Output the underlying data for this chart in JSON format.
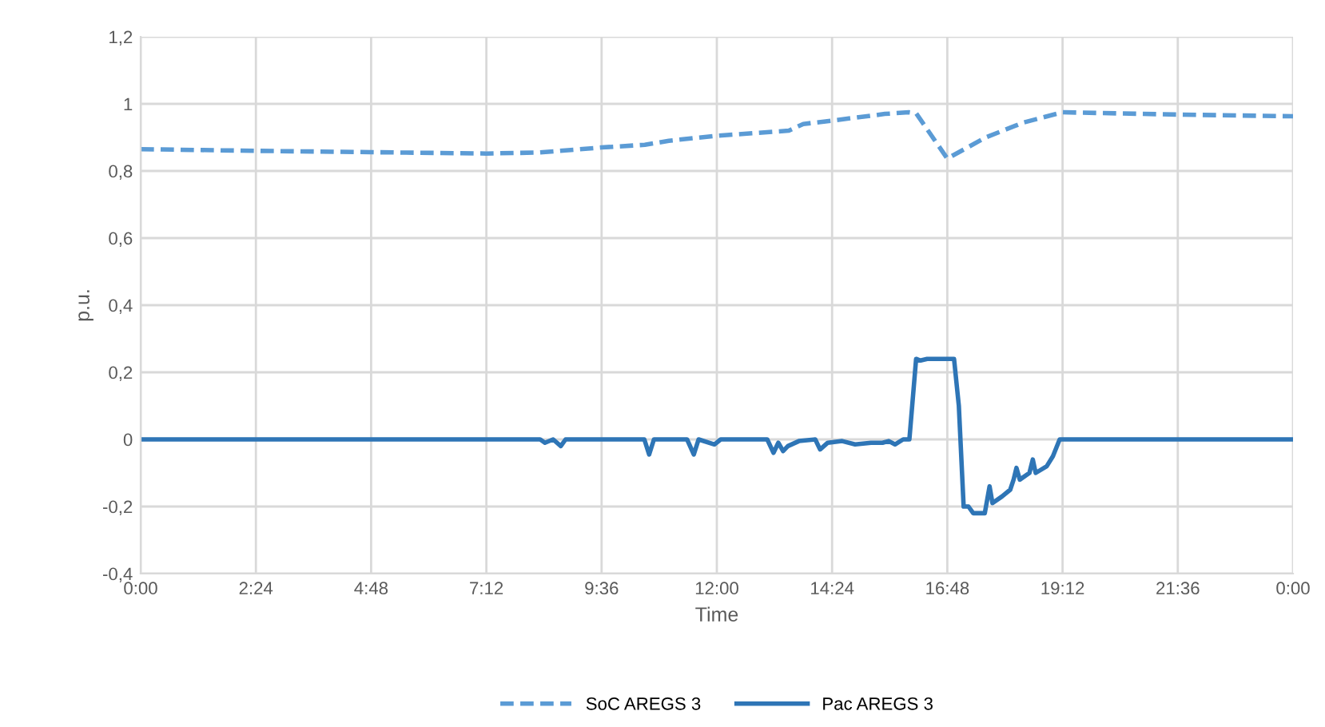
{
  "chart_data": {
    "type": "line",
    "xlabel": "Time",
    "ylabel": "p.u.",
    "xlim": [
      0,
      24
    ],
    "xticks": [
      {
        "value": 0,
        "label": "0:00"
      },
      {
        "value": 2.4,
        "label": "2:24"
      },
      {
        "value": 4.8,
        "label": "4:48"
      },
      {
        "value": 7.2,
        "label": "7:12"
      },
      {
        "value": 9.6,
        "label": "9:36"
      },
      {
        "value": 12,
        "label": "12:00"
      },
      {
        "value": 14.4,
        "label": "14:24"
      },
      {
        "value": 16.8,
        "label": "16:48"
      },
      {
        "value": 19.2,
        "label": "19:12"
      },
      {
        "value": 21.6,
        "label": "21:36"
      },
      {
        "value": 24,
        "label": "0:00"
      }
    ],
    "ylim": [
      -0.4,
      1.2
    ],
    "yticks": [
      {
        "value": -0.4,
        "label": "-0,4"
      },
      {
        "value": -0.2,
        "label": "-0,2"
      },
      {
        "value": 0,
        "label": "0"
      },
      {
        "value": 0.2,
        "label": "0,2"
      },
      {
        "value": 0.4,
        "label": "0,4"
      },
      {
        "value": 0.6,
        "label": "0,6"
      },
      {
        "value": 0.8,
        "label": "0,8"
      },
      {
        "value": 1,
        "label": "1"
      },
      {
        "value": 1.2,
        "label": "1,2"
      }
    ],
    "grid": true,
    "legend": "bottom",
    "marker": "none",
    "series": [
      {
        "name": "SoC AREGS 3",
        "color": "#5b9bd5",
        "line_style": "dashed",
        "x": [
          0,
          2.4,
          4.8,
          7.2,
          8.3,
          9.6,
          10.5,
          11,
          12,
          13.5,
          13.8,
          14.4,
          15.5,
          16,
          16.15,
          16.8,
          17.6,
          18.4,
          19.2,
          21.6,
          24
        ],
        "values": [
          0.865,
          0.86,
          0.856,
          0.852,
          0.855,
          0.87,
          0.878,
          0.89,
          0.905,
          0.92,
          0.94,
          0.95,
          0.97,
          0.975,
          0.972,
          0.837,
          0.9,
          0.945,
          0.975,
          0.968,
          0.963
        ]
      },
      {
        "name": "Pac AREGS 3",
        "color": "#2e75b6",
        "line_style": "solid",
        "x": [
          0,
          8.32,
          8.42,
          8.59,
          8.75,
          8.85,
          10.49,
          10.59,
          10.69,
          11.38,
          11.52,
          11.62,
          11.95,
          12.08,
          13.05,
          13.18,
          13.28,
          13.38,
          13.48,
          13.71,
          14.05,
          14.15,
          14.31,
          14.61,
          14.88,
          15.21,
          15.45,
          15.58,
          15.71,
          15.88,
          16.01,
          16.15,
          16.24,
          16.38,
          16.94,
          17.04,
          17.14,
          17.24,
          17.34,
          17.58,
          17.68,
          17.74,
          17.94,
          18.11,
          18.18,
          18.24,
          18.31,
          18.51,
          18.58,
          18.64,
          18.87,
          19.0,
          19.14,
          24
        ],
        "values": [
          0,
          0,
          -0.01,
          0,
          -0.02,
          0,
          0,
          -0.045,
          0,
          0,
          -0.045,
          0,
          -0.015,
          0,
          0,
          -0.04,
          -0.01,
          -0.035,
          -0.02,
          -0.005,
          0,
          -0.03,
          -0.01,
          -0.005,
          -0.015,
          -0.01,
          -0.01,
          -0.005,
          -0.015,
          0,
          0,
          0.24,
          0.235,
          0.24,
          0.24,
          0.1,
          -0.2,
          -0.2,
          -0.22,
          -0.22,
          -0.14,
          -0.19,
          -0.17,
          -0.15,
          -0.12,
          -0.085,
          -0.12,
          -0.1,
          -0.06,
          -0.1,
          -0.08,
          -0.05,
          0,
          0
        ]
      }
    ]
  }
}
